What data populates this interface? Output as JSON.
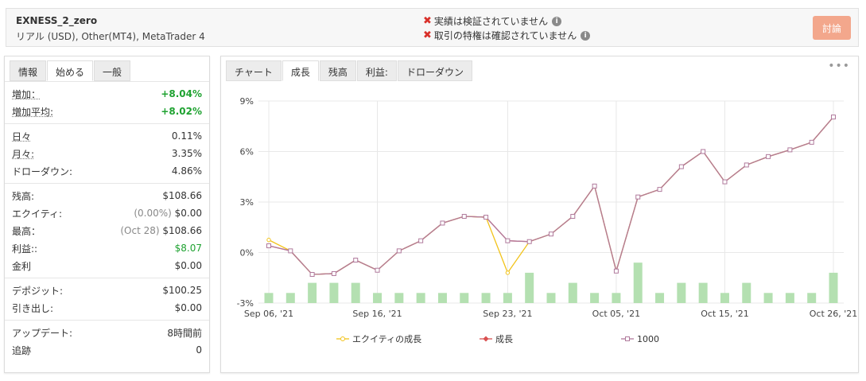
{
  "header": {
    "account_name": "EXNESS_2_zero",
    "account_sub": "リアル (USD), Other(MT4), MetaTrader 4",
    "warnings": [
      "実績は検証されていません",
      "取引の特権は確認されていません"
    ],
    "discuss_label": "討論"
  },
  "left": {
    "tabs": [
      "情報",
      "始める",
      "一般"
    ],
    "groups": [
      [
        {
          "label": "増加：",
          "value": "+8.04%",
          "underline": true,
          "style": "green"
        },
        {
          "label": "増加平均:",
          "value": "+8.02%",
          "underline": true,
          "style": "green"
        }
      ],
      [
        {
          "label": "日々",
          "value": "0.11%",
          "underline": true
        },
        {
          "label": "月々:",
          "value": "3.35%",
          "underline": true
        },
        {
          "label": "ドローダウン:",
          "value": "4.86%"
        }
      ],
      [
        {
          "label": "残高:",
          "value": "$108.66"
        },
        {
          "label": "エクイティ:",
          "prefix": "(0.00%)",
          "value": "$0.00"
        },
        {
          "label": "最高：",
          "prefix": "(Oct 28)",
          "value": "$108.66"
        },
        {
          "label": "利益::",
          "value": "$8.07",
          "style": "green-n"
        },
        {
          "label": "金利",
          "value": "$0.00"
        }
      ],
      [
        {
          "label": "デポジット:",
          "value": "$100.25"
        },
        {
          "label": "引き出し:",
          "value": "$0.00"
        }
      ],
      [
        {
          "label": "アップデート:",
          "value": "8時間前"
        },
        {
          "label": "追跡",
          "value": "0"
        }
      ]
    ]
  },
  "right": {
    "tabs": [
      "チャート",
      "成長",
      "残高",
      "利益:",
      "ドローダウン"
    ],
    "more": "•••"
  },
  "colors": {
    "equity": "#f2c31b",
    "growth": "#d95050",
    "balance": "#b07a9c",
    "bars": "#b4e0b1",
    "discuss": "#f3a78c",
    "green": "#1fa231"
  },
  "chart_data": {
    "type": "line",
    "y_ticks": [
      "9%",
      "6%",
      "3%",
      "0%",
      "-3%"
    ],
    "ylim": [
      -3,
      9
    ],
    "x_ticks": [
      "Sep 06, '21",
      "Sep 16, '21",
      "Sep 23, '21",
      "Oct 05, '21",
      "Oct 15, '21",
      "Oct 26, '21"
    ],
    "x_tick_index": [
      0,
      5,
      11,
      16,
      21,
      26
    ],
    "series": [
      {
        "name": "エクイティの成長",
        "values": [
          0.75,
          0.1,
          -1.3,
          -1.25,
          -0.45,
          -1.05,
          0.1,
          0.7,
          1.75,
          2.15,
          2.1,
          -1.2,
          0.65,
          1.1,
          2.15,
          3.95,
          -1.1,
          3.3,
          3.75,
          5.1,
          6.0,
          4.2,
          5.2,
          5.7,
          6.1,
          6.55,
          8.05
        ]
      },
      {
        "name": "成長",
        "values": [
          0.4,
          0.1,
          -1.3,
          -1.25,
          -0.45,
          -1.05,
          0.1,
          0.7,
          1.75,
          2.15,
          2.1,
          0.7,
          0.65,
          1.1,
          2.15,
          3.95,
          -1.1,
          3.3,
          3.75,
          5.1,
          6.0,
          4.2,
          5.2,
          5.7,
          6.1,
          6.55,
          8.05
        ]
      },
      {
        "name": "1000",
        "values": [
          0.4,
          0.1,
          -1.3,
          -1.25,
          -0.45,
          -1.05,
          0.1,
          0.7,
          1.75,
          2.15,
          2.1,
          0.7,
          0.65,
          1.1,
          2.15,
          3.95,
          -1.1,
          3.3,
          3.75,
          5.1,
          6.0,
          4.2,
          5.2,
          5.7,
          6.1,
          6.55,
          8.05
        ]
      }
    ],
    "bars": [
      0.6,
      0.6,
      1.2,
      1.2,
      1.2,
      0.6,
      0.6,
      0.6,
      0.6,
      0.6,
      0.6,
      0.6,
      1.8,
      0.6,
      1.2,
      0.6,
      0.6,
      2.4,
      0.6,
      1.2,
      1.2,
      0.6,
      1.2,
      0.6,
      0.6,
      0.6,
      1.8
    ]
  }
}
